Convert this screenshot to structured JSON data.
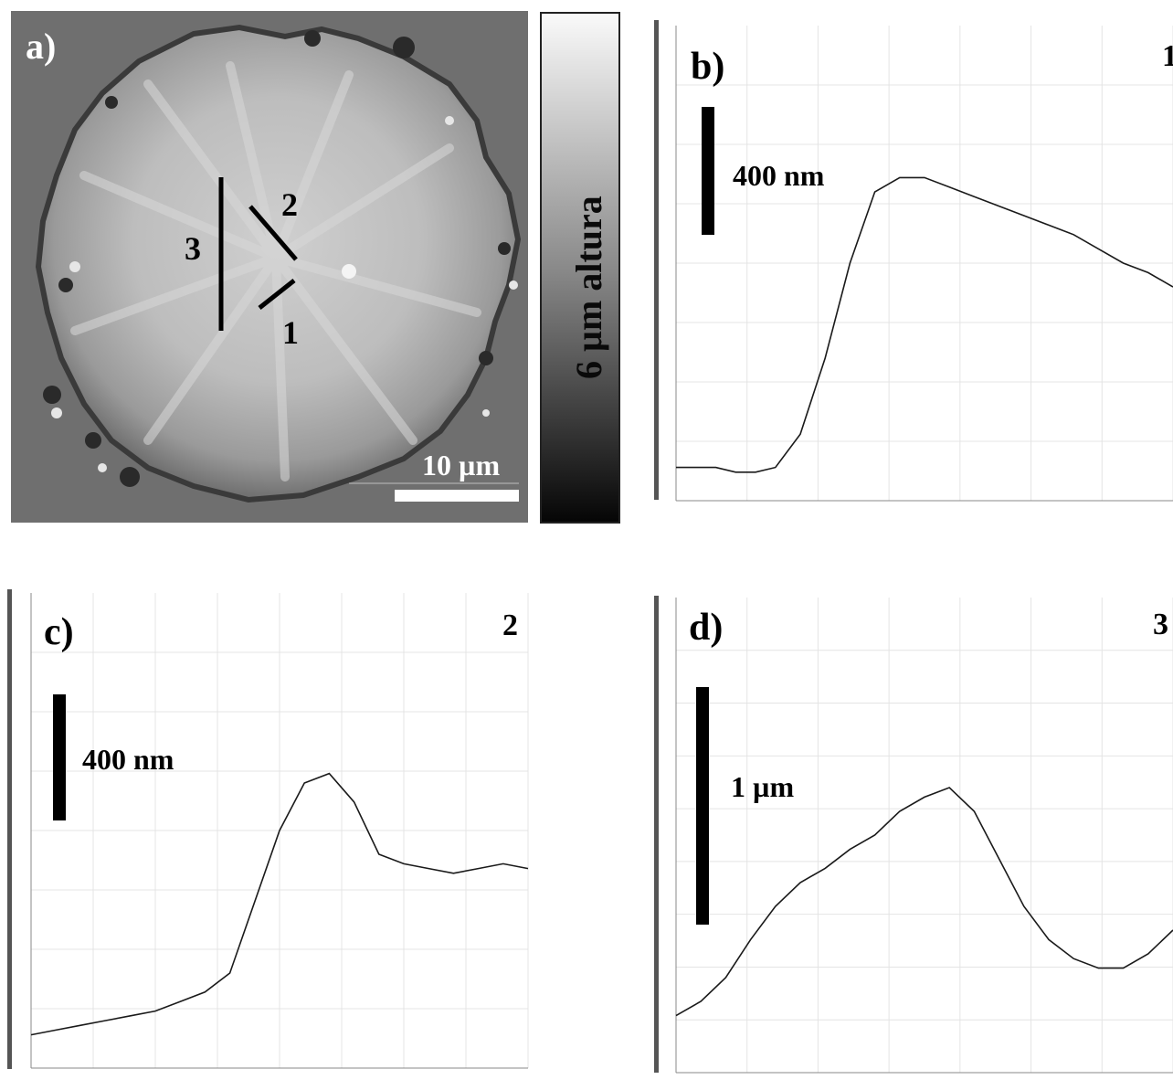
{
  "panel_a": {
    "label": "a)",
    "scale_bar_label": "10 µm",
    "colorbar_label": "6 µm altura",
    "line_labels": [
      "1",
      "2",
      "3"
    ]
  },
  "panel_b": {
    "label": "b)",
    "profile_number": "1",
    "scale_bar_label": "400 nm"
  },
  "panel_c": {
    "label": "c)",
    "profile_number": "2",
    "scale_bar_label": "400 nm"
  },
  "panel_d": {
    "label": "d)",
    "profile_number": "3",
    "scale_bar_label": "1 µm"
  },
  "chart_data": [
    {
      "panel": "b",
      "type": "line",
      "x": [
        0,
        0.04,
        0.08,
        0.12,
        0.16,
        0.2,
        0.25,
        0.3,
        0.35,
        0.4,
        0.45,
        0.5,
        0.55,
        0.6,
        0.65,
        0.7,
        0.75,
        0.8,
        0.85,
        0.9,
        0.95,
        1.0
      ],
      "y": [
        0.07,
        0.07,
        0.07,
        0.06,
        0.06,
        0.07,
        0.14,
        0.3,
        0.5,
        0.65,
        0.68,
        0.68,
        0.66,
        0.64,
        0.62,
        0.6,
        0.58,
        0.56,
        0.53,
        0.5,
        0.48,
        0.45
      ]
    },
    {
      "panel": "c",
      "type": "line",
      "x": [
        0,
        0.05,
        0.1,
        0.15,
        0.2,
        0.25,
        0.3,
        0.35,
        0.4,
        0.45,
        0.5,
        0.55,
        0.6,
        0.65,
        0.7,
        0.75,
        0.8,
        0.85,
        0.9,
        0.95,
        1.0
      ],
      "y": [
        0.07,
        0.08,
        0.09,
        0.1,
        0.11,
        0.12,
        0.14,
        0.16,
        0.2,
        0.35,
        0.5,
        0.6,
        0.62,
        0.56,
        0.45,
        0.43,
        0.42,
        0.41,
        0.42,
        0.43,
        0.42
      ]
    },
    {
      "panel": "d",
      "type": "line",
      "x": [
        0,
        0.05,
        0.1,
        0.15,
        0.2,
        0.25,
        0.3,
        0.35,
        0.4,
        0.45,
        0.5,
        0.55,
        0.6,
        0.65,
        0.7,
        0.75,
        0.8,
        0.85,
        0.9,
        0.95,
        1.0
      ],
      "y": [
        0.12,
        0.15,
        0.2,
        0.28,
        0.35,
        0.4,
        0.43,
        0.47,
        0.5,
        0.55,
        0.58,
        0.6,
        0.55,
        0.45,
        0.35,
        0.28,
        0.24,
        0.22,
        0.22,
        0.25,
        0.3
      ]
    }
  ]
}
